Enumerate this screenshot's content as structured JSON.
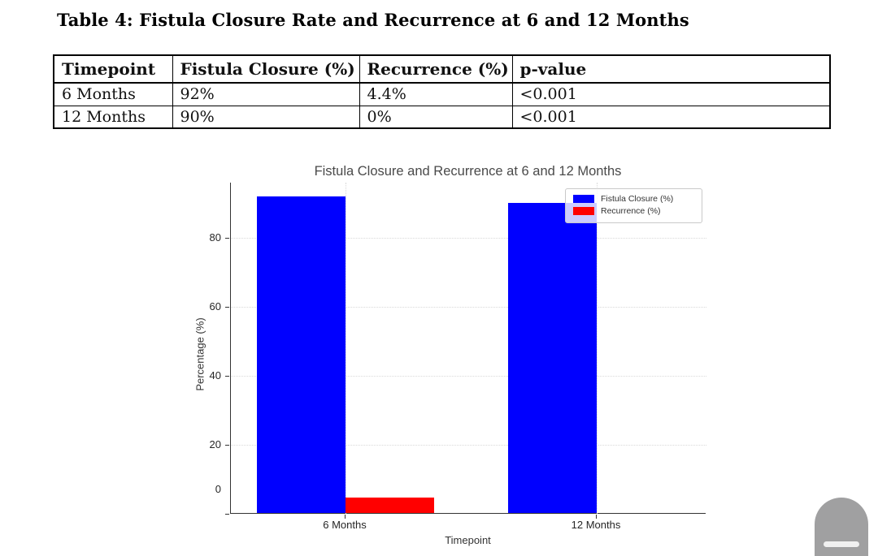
{
  "table_section": {
    "title": "Table 4: Fistula Closure Rate and Recurrence at 6 and 12 Months",
    "columns": [
      "Timepoint",
      "Fistula Closure (%)",
      "Recurrence (%)",
      "p-value"
    ],
    "rows": [
      [
        "6 Months",
        "92%",
        "4.4%",
        "<0.001"
      ],
      [
        "12 Months",
        "90%",
        "0%",
        "<0.001"
      ]
    ]
  },
  "chart_data": {
    "type": "bar",
    "title": "Fistula Closure and Recurrence at 6 and 12 Months",
    "categories": [
      "6 Months",
      "12 Months"
    ],
    "series": [
      {
        "name": "Fistula Closure (%)",
        "color": "#0000ff",
        "values": [
          92,
          90
        ]
      },
      {
        "name": "Recurrence (%)",
        "color": "#ff0000",
        "values": [
          4.4,
          0
        ]
      }
    ],
    "xlabel": "Timepoint",
    "ylabel": "Percentage (%)",
    "ylim": [
      0,
      96
    ],
    "yticks": [
      0,
      20,
      40,
      60,
      80
    ],
    "grid": "dotted, both axes, light gray",
    "legend_position": "upper right",
    "colors": {
      "spine": "#333333",
      "grid": "#d9d9d9",
      "title_text": "#4a4a4a",
      "tick_text": "#262626"
    }
  },
  "overlay": {
    "scroll_indicator_icon": "scroll-down-pill"
  }
}
